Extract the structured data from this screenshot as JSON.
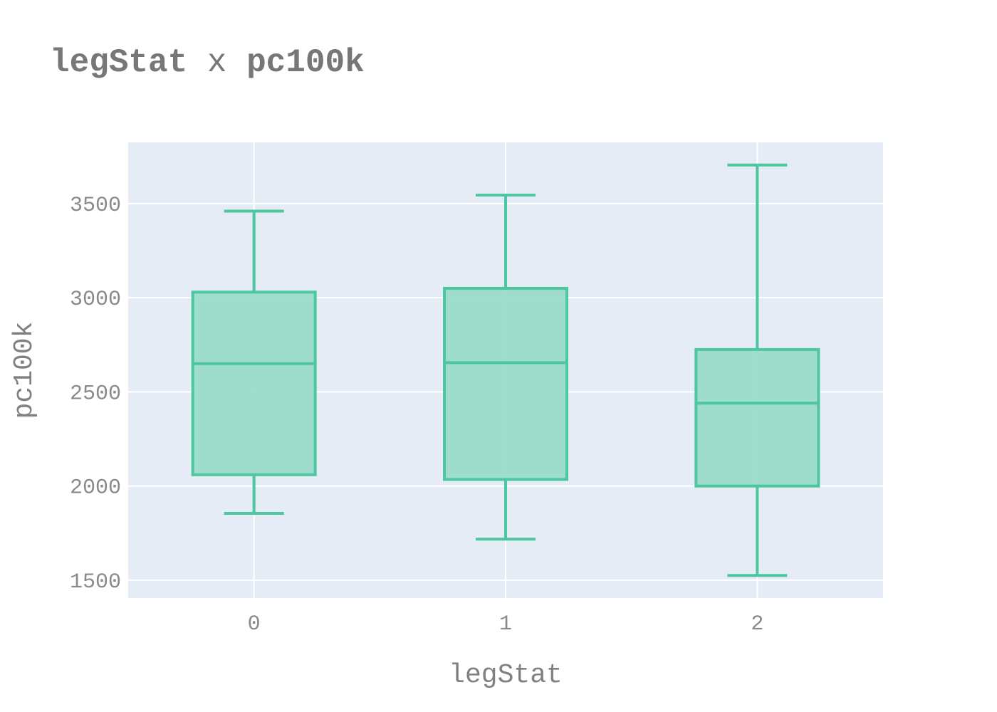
{
  "chart_data": {
    "type": "box",
    "title_parts": [
      {
        "text": "legStat",
        "bold": true
      },
      {
        "text": " x ",
        "bold": false
      },
      {
        "text": "pc100k",
        "bold": true
      }
    ],
    "xlabel": "legStat",
    "ylabel": "pc100k",
    "categories": [
      "0",
      "1",
      "2"
    ],
    "boxes": [
      {
        "category": "0",
        "lower_whisker": 1855,
        "q1": 2060,
        "median": 2650,
        "q3": 3030,
        "upper_whisker": 3460
      },
      {
        "category": "1",
        "lower_whisker": 1718,
        "q1": 2035,
        "median": 2655,
        "q3": 3050,
        "upper_whisker": 3545
      },
      {
        "category": "2",
        "lower_whisker": 1525,
        "q1": 2000,
        "median": 2440,
        "q3": 2725,
        "upper_whisker": 3705
      }
    ],
    "yticks": [
      1500,
      2000,
      2500,
      3000,
      3500
    ],
    "ylim": [
      1405,
      3825
    ],
    "grid": true,
    "colors": {
      "box_line": "#4cc79f",
      "box_fill": "#9adbc9",
      "plot_background": "#e5ecf6",
      "grid": "#ffffff"
    }
  }
}
